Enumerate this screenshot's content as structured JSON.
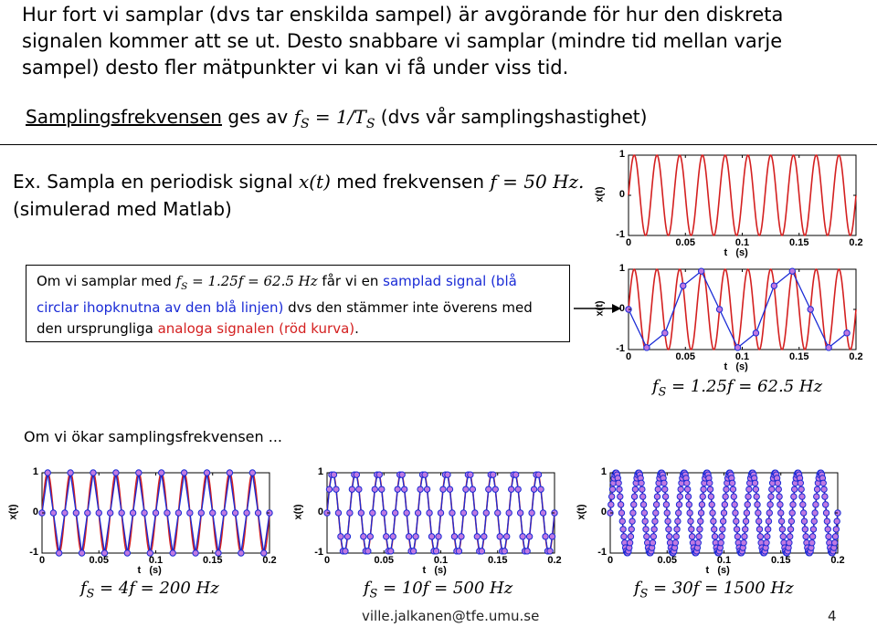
{
  "slide": {
    "intro": "Hur fort vi samplar (dvs tar enskilda sampel) är avgörande för hur den diskreta signalen kommer att se ut. Desto snabbare vi samplar (mindre tid mellan varje sampel) desto fler mätpunkter vi kan vi få under viss tid.",
    "definition": {
      "term": "Samplingsfrekvensen",
      "middle": " ges av ",
      "formula": "fS = 1/TS",
      "suffix": " (dvs vår samplingshastighet)"
    },
    "example": {
      "line1_prefix": "Ex. Sampla en periodisk signal ",
      "signal": "x(t)",
      "line1_mid": " med frekvensen ",
      "frequency": "f = 50 Hz.",
      "line2": "(simulerad med Matlab)"
    },
    "box": {
      "prefix": "Om vi samplar med ",
      "formula": "fS = 1.25f = 62.5 Hz",
      "mid": " får vi en ",
      "blue_text": "samplad signal (blå circlar ihopknutna av den blå linjen)",
      "mid2": " dvs den stämmer inte överens med den ursprungliga ",
      "red_text": "analoga signalen (röd kurva)",
      "end": "."
    },
    "increase_text": "Om vi ökar samplingsfrekvensen ...",
    "captions": {
      "c1": "fS = 1.25f = 62.5 Hz",
      "c2": "fS = 4f = 200 Hz",
      "c3": "fS = 10f = 500 Hz",
      "c4": "fS = 30f = 1500 Hz"
    },
    "footer": "ville.jalkanen@tfe.umu.se",
    "page_number": "4"
  },
  "colors": {
    "analog": "#d42020",
    "sampled": "#1a2bd6",
    "marker_fill": "#c079e0"
  },
  "chart_data": [
    {
      "type": "line",
      "signal": "x(t) = sin(2π·50·t)",
      "signal_frequency_hz": 50,
      "sample_rate_hz": null,
      "xlabel": "t   (s)",
      "ylabel": "x(t)",
      "xlim": [
        0,
        0.2
      ],
      "ylim": [
        -1,
        1
      ],
      "xticks": [
        "0",
        "0.05",
        "0.1",
        "0.15",
        "0.2"
      ],
      "yticks": [
        "-1",
        "0",
        "1"
      ],
      "series": []
    },
    {
      "type": "line",
      "signal_frequency_hz": 50,
      "sample_rate_hz": 62.5,
      "xlabel": "t   (s)",
      "ylabel": "x(t)",
      "xlim": [
        0,
        0.2
      ],
      "ylim": [
        -1,
        1
      ],
      "xticks": [
        "0",
        "0.05",
        "0.1",
        "0.15",
        "0.2"
      ],
      "yticks": [
        "-1",
        "0",
        "1"
      ],
      "series": []
    },
    {
      "type": "line",
      "signal_frequency_hz": 50,
      "sample_rate_hz": 200,
      "xlabel": "t   (s)",
      "ylabel": "x(t)",
      "xlim": [
        0,
        0.2
      ],
      "ylim": [
        -1,
        1
      ],
      "xticks": [
        "0",
        "0.05",
        "0.1",
        "0.15",
        "0.2"
      ],
      "yticks": [
        "-1",
        "0",
        "1"
      ],
      "series": []
    },
    {
      "type": "line",
      "signal_frequency_hz": 50,
      "sample_rate_hz": 500,
      "xlabel": "t   (s)",
      "ylabel": "x(t)",
      "xlim": [
        0,
        0.2
      ],
      "ylim": [
        -1,
        1
      ],
      "xticks": [
        "0",
        "0.05",
        "0.1",
        "0.15",
        "0.2"
      ],
      "yticks": [
        "-1",
        "0",
        "1"
      ],
      "series": []
    },
    {
      "type": "line",
      "signal_frequency_hz": 50,
      "sample_rate_hz": 1500,
      "xlabel": "t   (s)",
      "ylabel": "x(t)",
      "xlim": [
        0,
        0.2
      ],
      "ylim": [
        -1,
        1
      ],
      "xticks": [
        "0",
        "0.05",
        "0.1",
        "0.15",
        "0.2"
      ],
      "yticks": [
        "-1",
        "0",
        "1"
      ],
      "series": []
    }
  ]
}
